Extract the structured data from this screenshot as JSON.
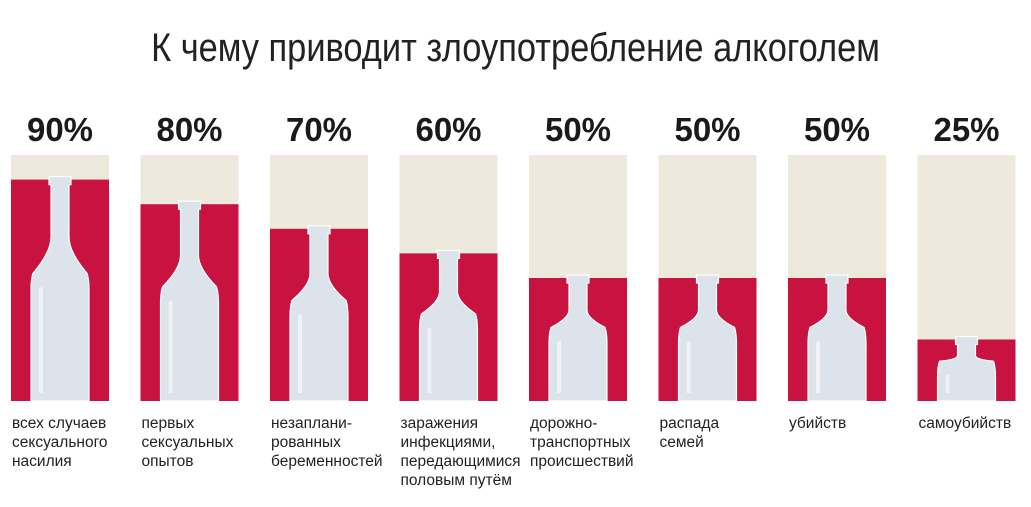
{
  "chart_data": {
    "type": "bar",
    "title": "К чему приводит злоупотребление алкоголем",
    "categories": [
      [
        "всех случаев",
        "сексуального",
        "насилия"
      ],
      [
        "первых",
        "сексуальных",
        "опытов"
      ],
      [
        "незаплани-",
        "рованных",
        "беременностей"
      ],
      [
        "заражения",
        "инфекциями,",
        "передающимися",
        "половым путём"
      ],
      [
        "дорожно-",
        "транспортных",
        "происшествий"
      ],
      [
        "распада",
        "семей"
      ],
      [
        "убийств"
      ],
      [
        "самоубийств"
      ]
    ],
    "values": [
      90,
      80,
      70,
      60,
      50,
      50,
      50,
      25
    ],
    "value_labels": [
      "90%",
      "80%",
      "70%",
      "60%",
      "50%",
      "50%",
      "50%",
      "25%"
    ],
    "ylim": [
      0,
      100
    ],
    "colors": {
      "fill": "#c8123f",
      "background": "#ede9dc",
      "bottle": "#dde3ea"
    }
  }
}
